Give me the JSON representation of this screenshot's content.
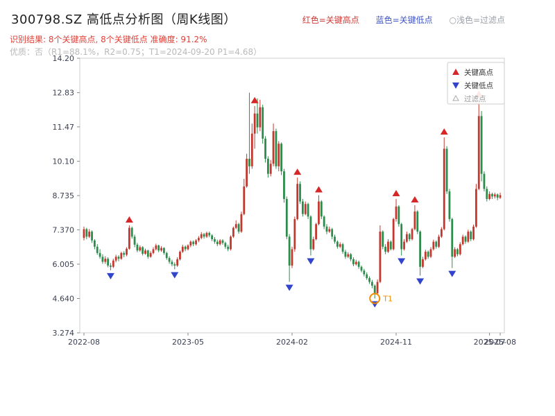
{
  "header": {
    "title": "300798.SZ 高低点分析图（周K线图）",
    "legend_top": [
      {
        "label": "红色=关键高点",
        "color": "#d03a36"
      },
      {
        "label": "蓝色=关键低点",
        "color": "#4056c8"
      },
      {
        "label": "○浅色=过滤点",
        "color": "#9aa0a6"
      }
    ],
    "result_line": "识别结果: 8个关键高点, 8个关键低点  准确度: 91.2%",
    "result_color": "#e04038",
    "quality_line": "优质：否（R1=88.1%，R2=0.75；T1=2024-09-20 P1=4.68）",
    "quality_color": "#b9b9b9"
  },
  "chart_data": {
    "type": "candlestick",
    "title": "300798.SZ 高低点分析图（周K线图）",
    "xlabel": "",
    "ylabel": "",
    "ylim": [
      3.274,
      14.2
    ],
    "grid": false,
    "up_color": "#c2382e",
    "down_color": "#2d8c4c",
    "marker_high_color": "#d62728",
    "marker_low_color": "#3344cc",
    "t1_color": "#f08c00",
    "axis_text_color": "#3a3f52",
    "yticks": [
      {
        "value": 14.2,
        "label": "14.20"
      },
      {
        "value": 12.83,
        "label": "12.83"
      },
      {
        "value": 11.47,
        "label": "11.47"
      },
      {
        "value": 10.1,
        "label": "10.10"
      },
      {
        "value": 8.735,
        "label": "8.735"
      },
      {
        "value": 7.37,
        "label": "7.370"
      },
      {
        "value": 6.005,
        "label": "6.005"
      },
      {
        "value": 4.64,
        "label": "4.640"
      },
      {
        "value": 3.274,
        "label": "3.274"
      }
    ],
    "xticks": [
      {
        "week": 0,
        "label": "2022-08"
      },
      {
        "week": 39,
        "label": "2023-05"
      },
      {
        "week": 78,
        "label": "2024-02"
      },
      {
        "week": 117,
        "label": "2024-11"
      },
      {
        "week": 152,
        "label": "2025-07"
      },
      {
        "week": 156,
        "label": "2025-08"
      }
    ],
    "candles": [
      [
        7.05,
        7.5,
        6.95,
        7.4
      ],
      [
        7.4,
        7.45,
        7.0,
        7.1
      ],
      [
        7.1,
        7.4,
        7.05,
        7.3
      ],
      [
        7.3,
        7.35,
        6.85,
        6.95
      ],
      [
        6.95,
        7.0,
        6.6,
        6.7
      ],
      [
        6.7,
        6.8,
        6.38,
        6.45
      ],
      [
        6.45,
        6.6,
        6.22,
        6.3
      ],
      [
        6.3,
        6.4,
        6.02,
        6.1
      ],
      [
        6.1,
        6.32,
        6.02,
        6.22
      ],
      [
        6.22,
        6.28,
        5.88,
        5.95
      ],
      [
        5.95,
        6.05,
        5.76,
        5.9
      ],
      [
        5.9,
        6.22,
        5.85,
        6.15
      ],
      [
        6.15,
        6.38,
        6.08,
        6.3
      ],
      [
        6.3,
        6.36,
        6.12,
        6.22
      ],
      [
        6.22,
        6.5,
        6.18,
        6.45
      ],
      [
        6.45,
        6.52,
        6.28,
        6.38
      ],
      [
        6.38,
        6.68,
        6.32,
        6.62
      ],
      [
        6.62,
        7.55,
        6.58,
        7.45
      ],
      [
        7.45,
        7.5,
        7.02,
        7.1
      ],
      [
        7.1,
        7.18,
        6.68,
        6.78
      ],
      [
        6.78,
        6.85,
        6.48,
        6.55
      ],
      [
        6.55,
        6.75,
        6.5,
        6.68
      ],
      [
        6.68,
        6.72,
        6.35,
        6.42
      ],
      [
        6.42,
        6.62,
        6.38,
        6.55
      ],
      [
        6.55,
        6.58,
        6.22,
        6.3
      ],
      [
        6.3,
        6.52,
        6.26,
        6.45
      ],
      [
        6.45,
        6.68,
        6.4,
        6.6
      ],
      [
        6.6,
        6.82,
        6.55,
        6.75
      ],
      [
        6.75,
        6.78,
        6.48,
        6.55
      ],
      [
        6.55,
        6.72,
        6.5,
        6.65
      ],
      [
        6.65,
        6.68,
        6.38,
        6.45
      ],
      [
        6.45,
        6.5,
        6.18,
        6.25
      ],
      [
        6.25,
        6.32,
        6.02,
        6.1
      ],
      [
        6.1,
        6.18,
        5.92,
        6.0
      ],
      [
        6.0,
        6.08,
        5.8,
        5.95
      ],
      [
        5.95,
        6.28,
        5.9,
        6.2
      ],
      [
        6.2,
        6.55,
        6.15,
        6.5
      ],
      [
        6.5,
        6.78,
        6.45,
        6.7
      ],
      [
        6.7,
        6.75,
        6.52,
        6.6
      ],
      [
        6.6,
        6.8,
        6.55,
        6.75
      ],
      [
        6.75,
        6.95,
        6.68,
        6.9
      ],
      [
        6.9,
        6.95,
        6.72,
        6.8
      ],
      [
        6.8,
        7.0,
        6.75,
        6.95
      ],
      [
        6.95,
        7.12,
        6.88,
        7.05
      ],
      [
        7.05,
        7.28,
        7.0,
        7.2
      ],
      [
        7.2,
        7.25,
        7.02,
        7.1
      ],
      [
        7.1,
        7.3,
        7.05,
        7.25
      ],
      [
        7.25,
        7.3,
        7.08,
        7.15
      ],
      [
        7.15,
        7.2,
        6.92,
        7.0
      ],
      [
        7.0,
        7.08,
        6.82,
        6.9
      ],
      [
        6.9,
        6.98,
        6.72,
        6.8
      ],
      [
        6.8,
        7.0,
        6.75,
        6.95
      ],
      [
        6.95,
        7.0,
        6.78,
        6.85
      ],
      [
        6.85,
        6.9,
        6.62,
        6.7
      ],
      [
        6.7,
        6.78,
        6.52,
        6.6
      ],
      [
        6.6,
        7.15,
        6.55,
        7.1
      ],
      [
        7.1,
        7.5,
        7.05,
        7.45
      ],
      [
        7.45,
        7.75,
        7.4,
        7.6
      ],
      [
        7.6,
        7.65,
        7.22,
        7.3
      ],
      [
        7.3,
        8.1,
        7.25,
        8.0
      ],
      [
        8.0,
        9.4,
        7.95,
        9.1
      ],
      [
        9.1,
        10.4,
        9.05,
        10.2
      ],
      [
        10.2,
        12.83,
        9.6,
        9.9
      ],
      [
        9.9,
        11.6,
        9.8,
        11.2
      ],
      [
        11.2,
        12.3,
        10.6,
        12.0
      ],
      [
        12.0,
        12.6,
        11.2,
        11.45
      ],
      [
        11.45,
        12.55,
        11.3,
        12.25
      ],
      [
        12.25,
        12.35,
        10.8,
        11.0
      ],
      [
        11.0,
        11.1,
        10.05,
        10.2
      ],
      [
        10.2,
        10.3,
        9.45,
        9.6
      ],
      [
        9.6,
        10.15,
        9.5,
        10.0
      ],
      [
        10.0,
        11.6,
        9.9,
        11.3
      ],
      [
        11.3,
        11.4,
        9.8,
        9.9
      ],
      [
        9.9,
        10.9,
        9.7,
        10.8
      ],
      [
        10.8,
        10.85,
        9.55,
        9.7
      ],
      [
        9.7,
        9.8,
        8.45,
        8.6
      ],
      [
        8.6,
        8.7,
        7.0,
        7.1
      ],
      [
        7.1,
        7.2,
        5.3,
        5.95
      ],
      [
        5.95,
        6.7,
        5.85,
        6.6
      ],
      [
        6.6,
        7.9,
        6.5,
        7.8
      ],
      [
        7.8,
        9.45,
        7.75,
        9.2
      ],
      [
        9.2,
        9.3,
        8.4,
        8.5
      ],
      [
        8.5,
        8.6,
        7.9,
        8.0
      ],
      [
        8.0,
        8.5,
        7.95,
        8.4
      ],
      [
        8.4,
        8.45,
        7.8,
        7.9
      ],
      [
        7.9,
        7.95,
        6.35,
        6.6
      ],
      [
        6.6,
        7.1,
        6.55,
        7.0
      ],
      [
        7.0,
        7.65,
        6.95,
        7.6
      ],
      [
        7.6,
        8.75,
        7.55,
        8.5
      ],
      [
        8.5,
        8.55,
        7.8,
        7.9
      ],
      [
        7.9,
        7.95,
        7.4,
        7.5
      ],
      [
        7.5,
        7.6,
        7.2,
        7.3
      ],
      [
        7.3,
        7.5,
        7.25,
        7.4
      ],
      [
        7.4,
        7.45,
        7.0,
        7.1
      ],
      [
        7.1,
        7.18,
        6.82,
        6.9
      ],
      [
        6.9,
        6.95,
        6.62,
        6.7
      ],
      [
        6.7,
        6.88,
        6.65,
        6.8
      ],
      [
        6.8,
        6.85,
        6.42,
        6.5
      ],
      [
        6.5,
        6.58,
        6.22,
        6.3
      ],
      [
        6.3,
        6.48,
        6.25,
        6.4
      ],
      [
        6.4,
        6.45,
        6.12,
        6.2
      ],
      [
        6.2,
        6.28,
        5.92,
        6.0
      ],
      [
        6.0,
        6.18,
        5.95,
        6.1
      ],
      [
        6.1,
        6.15,
        5.82,
        5.9
      ],
      [
        5.9,
        5.95,
        5.68,
        5.75
      ],
      [
        5.75,
        5.82,
        5.52,
        5.6
      ],
      [
        5.6,
        5.68,
        5.38,
        5.45
      ],
      [
        5.45,
        5.52,
        5.22,
        5.3
      ],
      [
        5.3,
        5.38,
        5.05,
        5.15
      ],
      [
        5.15,
        5.2,
        4.64,
        4.85
      ],
      [
        4.85,
        5.4,
        4.8,
        5.3
      ],
      [
        5.3,
        7.55,
        5.25,
        7.3
      ],
      [
        7.3,
        7.35,
        6.6,
        6.7
      ],
      [
        6.7,
        6.8,
        6.4,
        6.5
      ],
      [
        6.5,
        7.0,
        6.45,
        6.9
      ],
      [
        6.9,
        6.95,
        6.55,
        6.6
      ],
      [
        6.6,
        7.85,
        6.55,
        7.8
      ],
      [
        7.8,
        8.6,
        7.7,
        8.3
      ],
      [
        8.3,
        8.35,
        7.5,
        7.6
      ],
      [
        7.6,
        7.65,
        6.35,
        6.6
      ],
      [
        6.6,
        7.0,
        6.55,
        6.9
      ],
      [
        6.9,
        7.3,
        6.85,
        7.2
      ],
      [
        7.2,
        7.25,
        6.92,
        7.0
      ],
      [
        7.0,
        7.45,
        6.95,
        7.4
      ],
      [
        7.4,
        8.35,
        7.35,
        8.1
      ],
      [
        8.1,
        8.15,
        7.2,
        7.3
      ],
      [
        7.3,
        7.35,
        5.55,
        5.9
      ],
      [
        5.9,
        6.3,
        5.85,
        6.2
      ],
      [
        6.2,
        6.58,
        6.15,
        6.5
      ],
      [
        6.5,
        6.55,
        6.22,
        6.3
      ],
      [
        6.3,
        6.68,
        6.25,
        6.6
      ],
      [
        6.6,
        6.98,
        6.55,
        6.9
      ],
      [
        6.9,
        6.95,
        6.62,
        6.7
      ],
      [
        6.7,
        7.18,
        6.65,
        7.1
      ],
      [
        7.1,
        7.48,
        7.05,
        7.4
      ],
      [
        7.4,
        11.05,
        7.35,
        10.6
      ],
      [
        10.6,
        10.7,
        8.8,
        8.9
      ],
      [
        8.9,
        9.0,
        7.7,
        7.8
      ],
      [
        7.8,
        7.85,
        5.85,
        6.3
      ],
      [
        6.3,
        6.68,
        6.25,
        6.6
      ],
      [
        6.6,
        6.65,
        6.32,
        6.4
      ],
      [
        6.4,
        6.88,
        6.35,
        6.8
      ],
      [
        6.8,
        7.18,
        6.75,
        7.1
      ],
      [
        7.1,
        7.15,
        6.82,
        6.9
      ],
      [
        6.9,
        7.38,
        6.85,
        7.3
      ],
      [
        7.3,
        7.35,
        6.92,
        7.0
      ],
      [
        7.0,
        7.58,
        6.95,
        7.5
      ],
      [
        7.5,
        9.2,
        7.45,
        9.0
      ],
      [
        9.0,
        12.55,
        8.95,
        11.9
      ],
      [
        11.9,
        12.1,
        9.3,
        9.6
      ],
      [
        9.6,
        9.7,
        8.9,
        9.0
      ],
      [
        9.0,
        9.1,
        8.5,
        8.6
      ],
      [
        8.6,
        8.9,
        8.55,
        8.8
      ],
      [
        8.8,
        8.85,
        8.6,
        8.7
      ],
      [
        8.7,
        8.85,
        8.62,
        8.78
      ],
      [
        8.78,
        8.82,
        8.55,
        8.65
      ],
      [
        8.65,
        8.85,
        8.6,
        8.75
      ]
    ],
    "key_highs": [
      {
        "week": 17,
        "price": 7.55
      },
      {
        "week": 64,
        "price": 12.3
      },
      {
        "week": 80,
        "price": 9.45
      },
      {
        "week": 88,
        "price": 8.75
      },
      {
        "week": 117,
        "price": 8.6
      },
      {
        "week": 124,
        "price": 8.35
      },
      {
        "week": 135,
        "price": 11.05
      },
      {
        "week": 148,
        "price": 12.55
      }
    ],
    "key_lows": [
      {
        "week": 10,
        "price": 5.76
      },
      {
        "week": 34,
        "price": 5.8
      },
      {
        "week": 77,
        "price": 5.3
      },
      {
        "week": 85,
        "price": 6.35
      },
      {
        "week": 109,
        "price": 4.64
      },
      {
        "week": 119,
        "price": 6.35
      },
      {
        "week": 126,
        "price": 5.55
      },
      {
        "week": 138,
        "price": 5.85
      }
    ],
    "t1": {
      "week": 109,
      "price": 4.64,
      "label": "T1"
    },
    "legend_box": [
      {
        "label": "关键高点",
        "marker": "up",
        "color": "#d62728",
        "text_color": "#333333"
      },
      {
        "label": "关键低点",
        "marker": "down",
        "color": "#3344cc",
        "text_color": "#333333"
      },
      {
        "label": "过滤点",
        "marker": "open",
        "color": "#aaaaaa",
        "text_color": "#999999"
      }
    ]
  }
}
